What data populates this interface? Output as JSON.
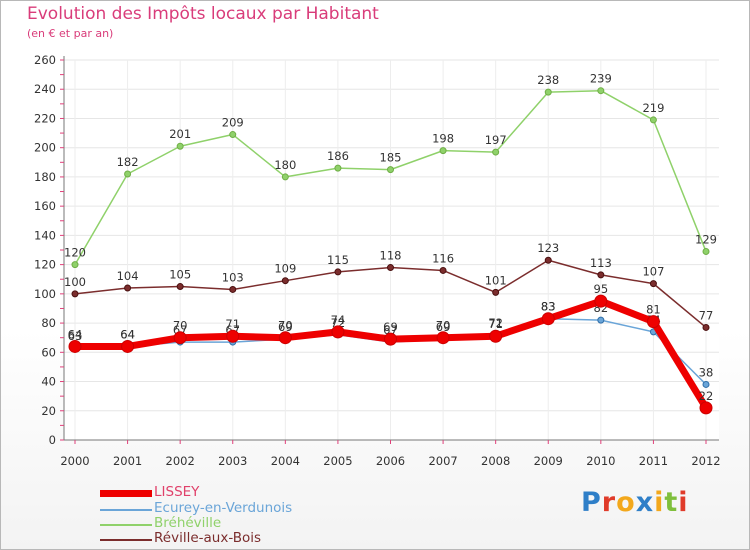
{
  "title": "Evolution des Impôts locaux par Habitant",
  "subtitle": "(en € et par an)",
  "logo": {
    "letters": [
      "P",
      "r",
      "o",
      "x",
      "i",
      "t",
      "i"
    ],
    "colors": [
      "#2f7fc8",
      "#e03b2a",
      "#f3a81c",
      "#2f7fc8",
      "#f3a81c",
      "#7fbf3c",
      "#e03b2a"
    ]
  },
  "chart_data": {
    "type": "line",
    "title": "Evolution des Impôts locaux par Habitant",
    "subtitle": "(en € et par an)",
    "xlabel": "",
    "ylabel": "",
    "ylim": [
      0,
      260
    ],
    "yticks": [
      "0",
      "20",
      "40",
      "60",
      "80",
      "100",
      "120",
      "140",
      "160",
      "180",
      "200",
      "220",
      "240",
      "260"
    ],
    "categories": [
      "2000",
      "2001",
      "2002",
      "2003",
      "2004",
      "2005",
      "2006",
      "2007",
      "2008",
      "2009",
      "2010",
      "2011",
      "2012"
    ],
    "grid": true,
    "legend_position": "bottom-left",
    "series": [
      {
        "name": "Bréhéville",
        "color": "#8fd16a",
        "values": [
          120,
          182,
          201,
          209,
          180,
          186,
          185,
          198,
          197,
          238,
          239,
          219,
          129
        ],
        "labels": [
          "120",
          "182",
          "201",
          "209",
          "180",
          "186",
          "185",
          "198",
          "197",
          "238",
          "239",
          "219",
          "129"
        ]
      },
      {
        "name": "Réville-aux-Bois",
        "color": "#7b2d2d",
        "values": [
          100,
          104,
          105,
          103,
          109,
          115,
          118,
          116,
          101,
          123,
          113,
          107,
          77
        ],
        "labels": [
          "100",
          "104",
          "105",
          "103",
          "109",
          "115",
          "118",
          "116",
          "101",
          "123",
          "113",
          "107",
          "77"
        ]
      },
      {
        "name": "Ecurey-en-Verdunois",
        "color": "#6aa5d8",
        "values": [
          63,
          64,
          67,
          67,
          69,
          72,
          67,
          69,
          72,
          83,
          82,
          74,
          38
        ],
        "labels": [
          "63",
          "64",
          "67",
          "67",
          "69",
          "72",
          "67",
          "69",
          "72",
          "83",
          "82",
          "74",
          "38"
        ]
      },
      {
        "name": "LISSEY",
        "color": "#ee0000",
        "values": [
          64,
          64,
          70,
          71,
          70,
          74,
          69,
          70,
          71,
          83,
          95,
          81,
          22
        ],
        "labels": [
          "64",
          "64",
          "70",
          "71",
          "70",
          "74",
          "69",
          "70",
          "71",
          "83",
          "95",
          "81",
          "22"
        ]
      }
    ],
    "legend": [
      "LISSEY",
      "Ecurey-en-Verdunois",
      "Bréhéville",
      "Réville-aux-Bois"
    ]
  }
}
